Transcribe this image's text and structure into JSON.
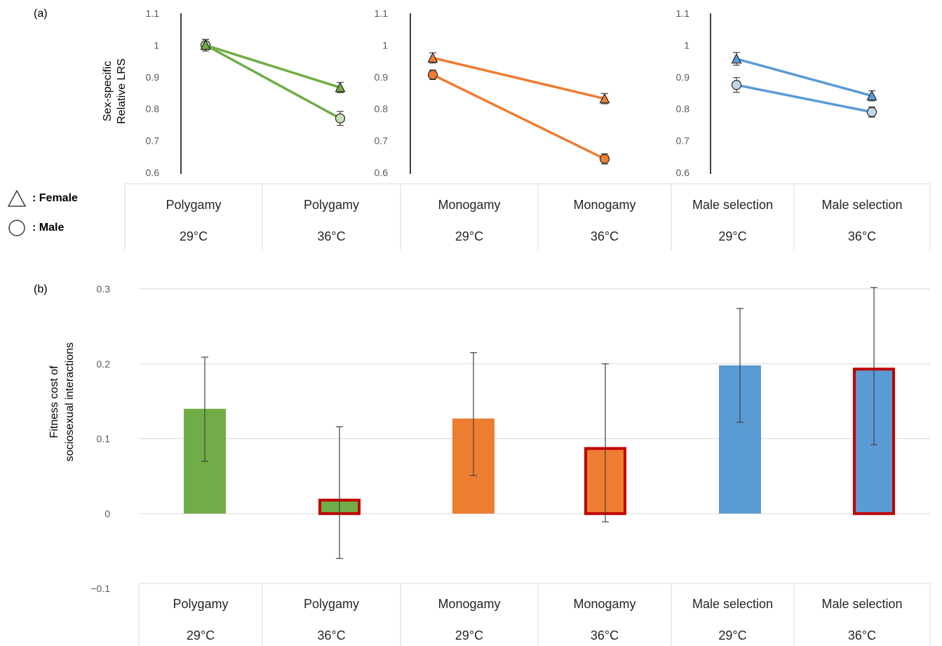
{
  "chart_data": [
    {
      "panel_label": "(a)",
      "type": "line",
      "ylabel": [
        "Sex-specific",
        "Relative LRS"
      ],
      "ylim": [
        0.6,
        1.1
      ],
      "yticks": [
        "0.6",
        "0.7",
        "0.8",
        "0.9",
        "1",
        "1.1"
      ],
      "legend": [
        {
          "symbol": "triangle",
          "label": ": Female"
        },
        {
          "symbol": "circle",
          "label": ": Male"
        }
      ],
      "categories": [
        {
          "treatment": "Polygamy",
          "temp": "29°C"
        },
        {
          "treatment": "Polygamy",
          "temp": "36°C"
        },
        {
          "treatment": "Monogamy",
          "temp": "29°C"
        },
        {
          "treatment": "Monogamy",
          "temp": "36°C"
        },
        {
          "treatment": "Male selection",
          "temp": "29°C"
        },
        {
          "treatment": "Male selection",
          "temp": "36°C"
        }
      ],
      "subplots": [
        {
          "line_color": "#70ad47",
          "male_fill": "#c5e0b4",
          "female_fill": "#70ad47",
          "series": [
            {
              "sex": "female",
              "values": [
                1.0,
                0.867
              ],
              "errors": [
                0.018,
                0.016
              ]
            },
            {
              "sex": "male",
              "values": [
                1.0,
                0.77
              ],
              "errors": [
                0.018,
                0.022
              ]
            }
          ]
        },
        {
          "line_color": "#ed7d31",
          "male_fill": "#ed7d31",
          "female_fill": "#ed7d31",
          "series": [
            {
              "sex": "female",
              "values": [
                0.96,
                0.832
              ],
              "errors": [
                0.016,
                0.016
              ]
            },
            {
              "sex": "male",
              "values": [
                0.907,
                0.643
              ],
              "errors": [
                0.015,
                0.016
              ]
            }
          ]
        },
        {
          "line_color": "#5b9bd5",
          "male_fill": "#bdd7ee",
          "female_fill": "#5b9bd5",
          "series": [
            {
              "sex": "female",
              "values": [
                0.957,
                0.841
              ],
              "errors": [
                0.02,
                0.016
              ]
            },
            {
              "sex": "male",
              "values": [
                0.875,
                0.79
              ],
              "errors": [
                0.023,
                0.016
              ]
            }
          ]
        }
      ]
    },
    {
      "panel_label": "(b)",
      "type": "bar",
      "ylabel": [
        "Fitness cost of",
        "sociosexual interactions"
      ],
      "ylim": [
        -0.1,
        0.3
      ],
      "yticks": [
        "−0.1",
        "0",
        "0.1",
        "0.2",
        "0.3"
      ],
      "grid": true,
      "categories": [
        {
          "treatment": "Polygamy",
          "temp": "29°C"
        },
        {
          "treatment": "Polygamy",
          "temp": "36°C"
        },
        {
          "treatment": "Monogamy",
          "temp": "29°C"
        },
        {
          "treatment": "Monogamy",
          "temp": "36°C"
        },
        {
          "treatment": "Male selection",
          "temp": "29°C"
        },
        {
          "treatment": "Male selection",
          "temp": "36°C"
        }
      ],
      "values": [
        0.14,
        0.018,
        0.127,
        0.087,
        0.198,
        0.193
      ],
      "error_low": [
        0.07,
        -0.06,
        0.051,
        -0.011,
        0.122,
        0.092
      ],
      "error_high": [
        0.209,
        0.116,
        0.215,
        0.2,
        0.274,
        0.302
      ],
      "colors": [
        "#70ad47",
        "#70ad47",
        "#ed7d31",
        "#ed7d31",
        "#5b9bd5",
        "#5b9bd5"
      ],
      "highlighted": [
        false,
        true,
        false,
        true,
        false,
        true
      ],
      "highlight_color": "#c00000"
    }
  ]
}
